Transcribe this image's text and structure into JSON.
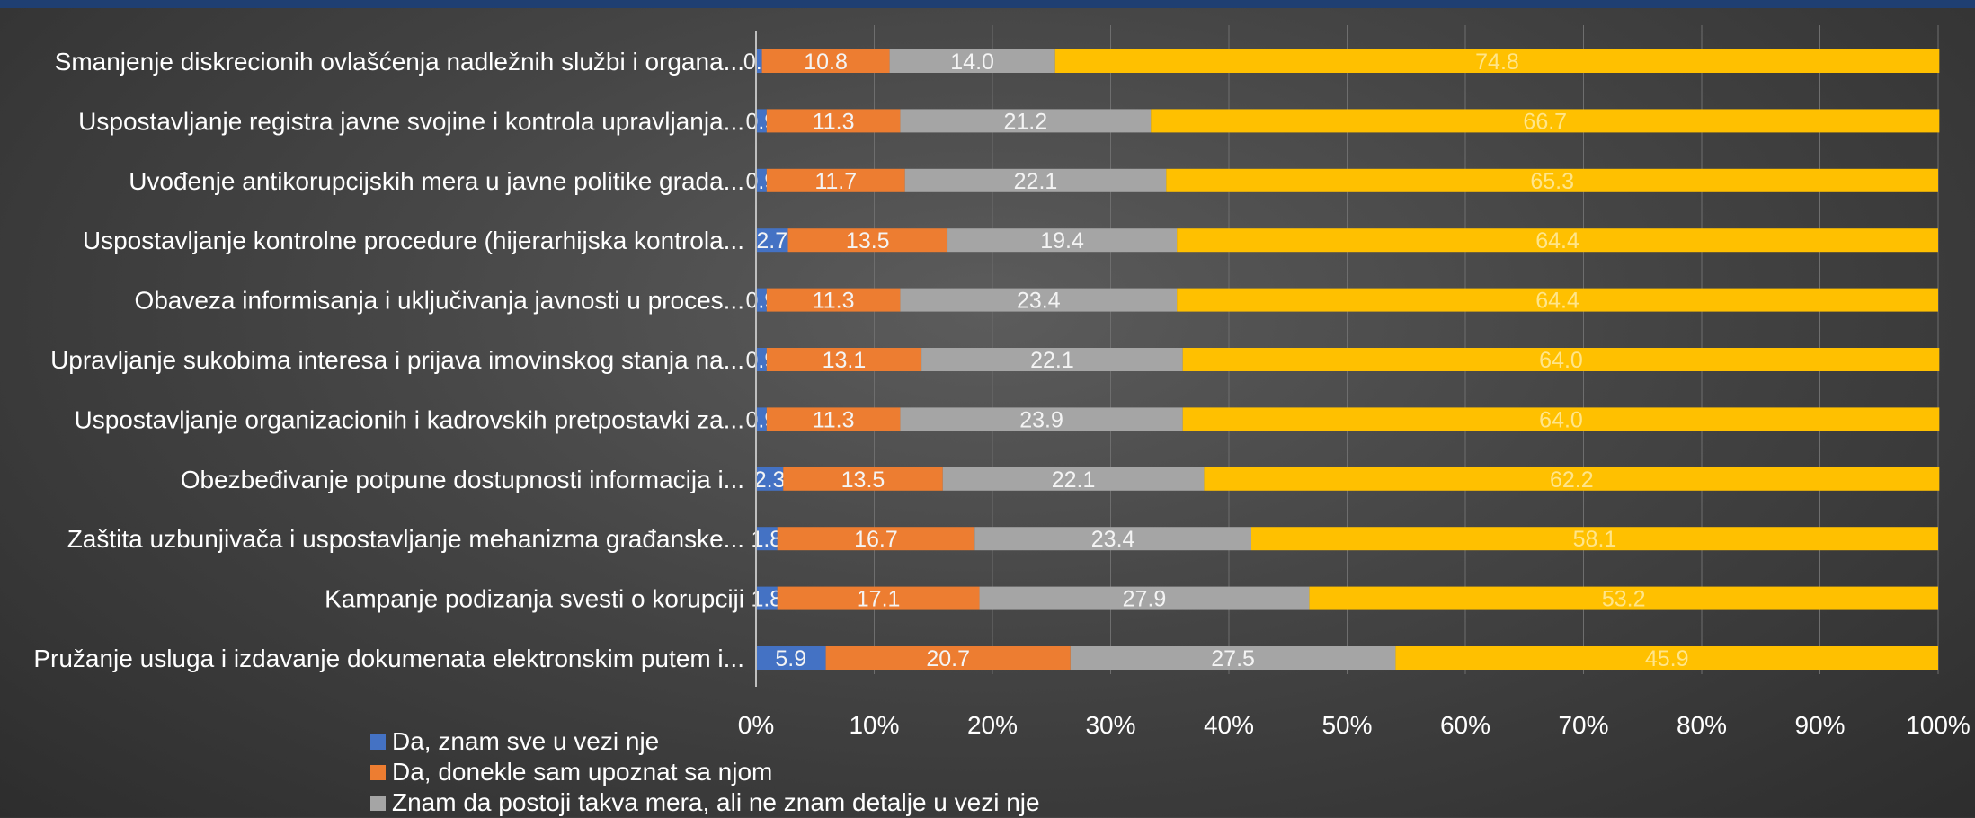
{
  "colors": {
    "series": [
      "#4472c4",
      "#ed7d31",
      "#a5a5a5",
      "#ffc000"
    ],
    "label_on_yellow": "#ffe58a"
  },
  "chart_data": {
    "type": "bar",
    "orientation": "horizontal",
    "stacked": "percent",
    "categories": [
      "Smanjenje diskrecionih ovlašćenja nadležnih službi i organa...",
      "Uspostavljanje registra javne svojine i kontrola upravljanja...",
      "Uvođenje antikorupcijskih mera u javne politike grada...",
      "Uspostavljanje kontrolne procedure (hijerarhijska kontrola...",
      "Obaveza informisanja i uključivanja javnosti u proces...",
      "Upravljanje sukobima interesa i prijava imovinskog stanja na...",
      "Uspostavljanje organizacionih i kadrovskih pretpostavki za...",
      "Obezbeđivanje potpune dostupnosti informacija i...",
      "Zaštita uzbunjivača i uspostavljanje mehanizma građanske...",
      "Kampanje podizanja svesti o korupciji",
      "Pružanje usluga i izdavanje dokumenata elektronskim putem i..."
    ],
    "series": [
      {
        "name": "Da, znam sve u vezi nje",
        "values": [
          0.5,
          0.9,
          0.9,
          2.7,
          0.9,
          0.9,
          0.9,
          2.3,
          1.8,
          1.8,
          5.9
        ]
      },
      {
        "name": "Da, donekle sam upoznat sa njom",
        "values": [
          10.8,
          11.3,
          11.7,
          13.5,
          11.3,
          13.1,
          11.3,
          13.5,
          16.7,
          17.1,
          20.7
        ]
      },
      {
        "name": "Znam da postoji takva mera, ali ne znam detalje u vezi nje",
        "values": [
          14.0,
          21.2,
          22.1,
          19.4,
          23.4,
          22.1,
          23.9,
          22.1,
          23.4,
          27.9,
          27.5
        ]
      },
      {
        "name": "",
        "values": [
          74.8,
          66.7,
          65.3,
          64.4,
          64.4,
          64.0,
          64.0,
          62.2,
          58.1,
          53.2,
          45.9
        ]
      }
    ],
    "xlim": [
      0,
      100
    ],
    "xticks": [
      "0%",
      "10%",
      "20%",
      "30%",
      "40%",
      "50%",
      "60%",
      "70%",
      "80%",
      "90%",
      "100%"
    ],
    "grid": true,
    "legend_position": "bottom-left"
  }
}
